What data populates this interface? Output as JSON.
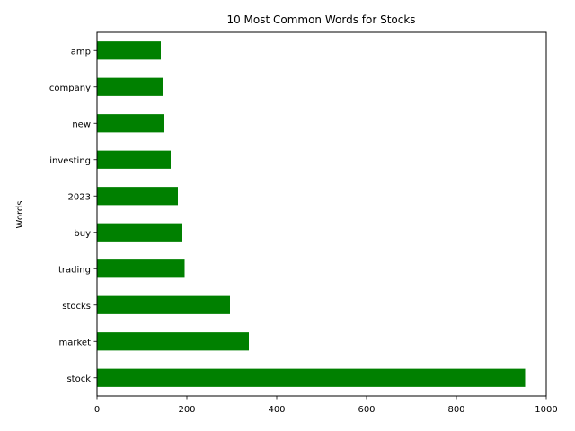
{
  "chart_data": {
    "type": "bar",
    "orientation": "horizontal",
    "title": "10 Most Common Words for Stocks",
    "xlabel": "",
    "ylabel": "Words",
    "categories": [
      "stock",
      "market",
      "stocks",
      "trading",
      "buy",
      "2023",
      "investing",
      "new",
      "company",
      "amp"
    ],
    "values": [
      953,
      338,
      296,
      195,
      190,
      180,
      164,
      148,
      146,
      142
    ],
    "xlim": [
      0,
      1000
    ],
    "xticks": [
      0,
      200,
      400,
      600,
      800,
      1000
    ],
    "grid": false,
    "legend": "none",
    "bar_color": "#008000"
  }
}
